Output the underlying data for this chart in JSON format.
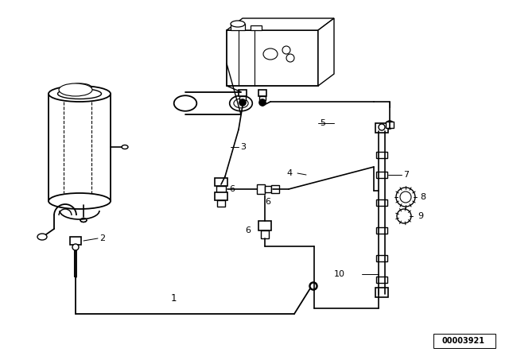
{
  "bg_color": "#ffffff",
  "line_color": "#000000",
  "fig_width": 6.4,
  "fig_height": 4.48,
  "dpi": 100,
  "part_number": "00003921"
}
